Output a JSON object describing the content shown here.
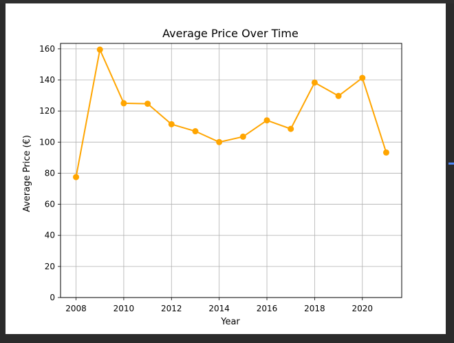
{
  "chart_data": {
    "type": "line",
    "title": "Average Price Over Time",
    "xlabel": "Year",
    "ylabel": "Average Price (€)",
    "x": [
      2008,
      2009,
      2010,
      2011,
      2012,
      2013,
      2014,
      2015,
      2016,
      2017,
      2018,
      2019,
      2020,
      2021
    ],
    "series": [
      {
        "values": [
          77.5,
          159.5,
          125,
          124.7,
          111.5,
          107,
          100,
          103.5,
          114,
          108.5,
          138.3,
          129.7,
          141.3,
          93.3
        ]
      }
    ],
    "xticks": [
      "2008",
      "2010",
      "2012",
      "2014",
      "2016",
      "2018",
      "2020"
    ],
    "yticks": [
      "0",
      "20",
      "40",
      "60",
      "80",
      "100",
      "120",
      "140",
      "160"
    ],
    "xlim": [
      2007.35,
      2021.65
    ],
    "ylim": [
      0,
      163.5
    ],
    "grid": true,
    "line_color": "#ffa500",
    "marker": "circle"
  }
}
